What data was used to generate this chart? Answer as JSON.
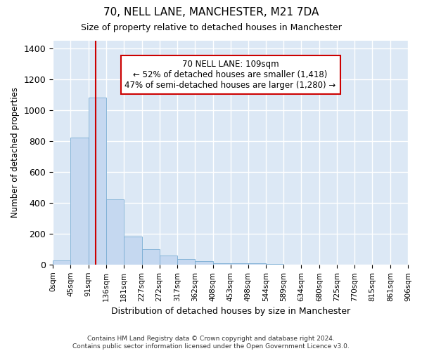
{
  "title": "70, NELL LANE, MANCHESTER, M21 7DA",
  "subtitle": "Size of property relative to detached houses in Manchester",
  "xlabel": "Distribution of detached houses by size in Manchester",
  "ylabel": "Number of detached properties",
  "footnote1": "Contains HM Land Registry data © Crown copyright and database right 2024.",
  "footnote2": "Contains public sector information licensed under the Open Government Licence v3.0.",
  "bin_edges": [
    0,
    45,
    91,
    136,
    181,
    227,
    272,
    317,
    362,
    408,
    453,
    498,
    544,
    589,
    634,
    680,
    725,
    770,
    815,
    861,
    906
  ],
  "bar_heights": [
    25,
    820,
    1080,
    420,
    180,
    100,
    57,
    35,
    20,
    10,
    8,
    6,
    5,
    0,
    0,
    0,
    0,
    0,
    0,
    0
  ],
  "bar_color": "#c5d8f0",
  "bar_edge_color": "#7aadd4",
  "background_color": "#dce8f5",
  "grid_color": "#ffffff",
  "fig_background": "#ffffff",
  "vline_x": 109,
  "vline_color": "#cc0000",
  "annotation_text": "70 NELL LANE: 109sqm\n← 52% of detached houses are smaller (1,418)\n47% of semi-detached houses are larger (1,280) →",
  "annotation_box_facecolor": "#ffffff",
  "annotation_box_edgecolor": "#cc0000",
  "ylim": [
    0,
    1450
  ],
  "yticks": [
    0,
    200,
    400,
    600,
    800,
    1000,
    1200,
    1400
  ],
  "tick_labels": [
    "0sqm",
    "45sqm",
    "91sqm",
    "136sqm",
    "181sqm",
    "227sqm",
    "272sqm",
    "317sqm",
    "362sqm",
    "408sqm",
    "453sqm",
    "498sqm",
    "544sqm",
    "589sqm",
    "634sqm",
    "680sqm",
    "725sqm",
    "770sqm",
    "815sqm",
    "861sqm",
    "906sqm"
  ]
}
